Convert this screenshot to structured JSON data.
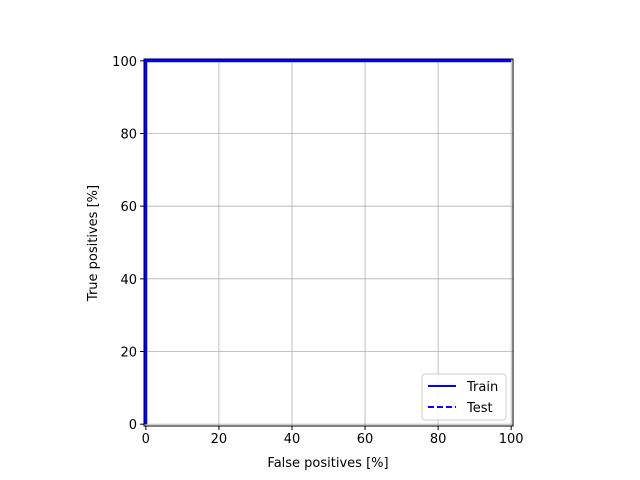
{
  "chart_data": {
    "type": "line",
    "title": "",
    "xlabel": "False positives [%]",
    "ylabel": "True positives [%]",
    "xlim": [
      -0.5,
      100.5
    ],
    "ylim": [
      -0.5,
      100.5
    ],
    "xticks": [
      0,
      20,
      40,
      60,
      80,
      100
    ],
    "yticks": [
      0,
      20,
      40,
      60,
      80,
      100
    ],
    "xtick_labels": [
      "0",
      "20",
      "40",
      "60",
      "80",
      "100"
    ],
    "ytick_labels": [
      "0",
      "20",
      "40",
      "60",
      "80",
      "100"
    ],
    "grid": true,
    "legend_position": "lower-right",
    "series": [
      {
        "name": "Train",
        "color": "#0000ff",
        "linestyle": "solid",
        "x": [
          0,
          0,
          100
        ],
        "y": [
          0,
          100,
          100
        ]
      },
      {
        "name": "Test",
        "color": "#0000ff",
        "linestyle": "dashed",
        "x": [
          0,
          0,
          100
        ],
        "y": [
          0,
          100,
          100
        ]
      }
    ]
  }
}
